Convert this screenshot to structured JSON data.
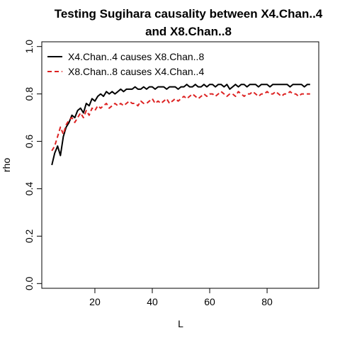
{
  "chart_data": {
    "type": "line",
    "title_lines": [
      "Testing Sugihara causality between  X4.Chan..4",
      "and X8.Chan..8"
    ],
    "xlabel": "L",
    "ylabel": "rho",
    "xlim": [
      1.5,
      98
    ],
    "ylim": [
      -0.02,
      1.02
    ],
    "xticks": [
      20,
      40,
      60,
      80
    ],
    "yticks": [
      0.0,
      0.2,
      0.4,
      0.6,
      0.8,
      1.0
    ],
    "xtick_labels": [
      "20",
      "40",
      "60",
      "80"
    ],
    "ytick_labels": [
      "0.0",
      "0.2",
      "0.4",
      "0.6",
      "0.8",
      "1.0"
    ],
    "grid": false,
    "legend_position": "top-left",
    "legend": [
      {
        "label": "X4.Chan..4 causes X8.Chan..8",
        "color": "#000000",
        "style": "solid"
      },
      {
        "label": "X8.Chan..8 causes X4.Chan..4",
        "color": "#dd2222",
        "style": "dashed"
      }
    ],
    "x": [
      5,
      6,
      7,
      8,
      9,
      10,
      11,
      12,
      13,
      14,
      15,
      16,
      17,
      18,
      19,
      20,
      21,
      22,
      23,
      24,
      25,
      26,
      27,
      28,
      29,
      30,
      31,
      32,
      33,
      34,
      35,
      36,
      37,
      38,
      39,
      40,
      41,
      42,
      43,
      44,
      45,
      46,
      47,
      48,
      49,
      50,
      51,
      52,
      53,
      54,
      55,
      56,
      57,
      58,
      59,
      60,
      61,
      62,
      63,
      64,
      65,
      66,
      67,
      68,
      69,
      70,
      71,
      72,
      73,
      74,
      75,
      76,
      77,
      78,
      79,
      80,
      81,
      82,
      83,
      84,
      85,
      86,
      87,
      88,
      89,
      90,
      91,
      92,
      93,
      94,
      95
    ],
    "series": [
      {
        "color": "#000000",
        "style": "solid",
        "values": [
          0.5,
          0.55,
          0.58,
          0.54,
          0.62,
          0.66,
          0.68,
          0.71,
          0.7,
          0.73,
          0.74,
          0.72,
          0.76,
          0.75,
          0.78,
          0.77,
          0.79,
          0.8,
          0.79,
          0.81,
          0.8,
          0.81,
          0.8,
          0.81,
          0.82,
          0.81,
          0.82,
          0.82,
          0.82,
          0.83,
          0.82,
          0.82,
          0.83,
          0.82,
          0.83,
          0.83,
          0.82,
          0.83,
          0.83,
          0.83,
          0.82,
          0.83,
          0.83,
          0.83,
          0.82,
          0.83,
          0.83,
          0.84,
          0.83,
          0.83,
          0.84,
          0.83,
          0.83,
          0.84,
          0.83,
          0.84,
          0.84,
          0.83,
          0.84,
          0.84,
          0.83,
          0.84,
          0.82,
          0.83,
          0.84,
          0.83,
          0.84,
          0.84,
          0.83,
          0.84,
          0.84,
          0.84,
          0.83,
          0.84,
          0.84,
          0.84,
          0.83,
          0.84,
          0.84,
          0.84,
          0.84,
          0.84,
          0.84,
          0.83,
          0.84,
          0.84,
          0.84,
          0.84,
          0.83,
          0.84,
          0.84
        ]
      },
      {
        "color": "#dd2222",
        "style": "dashed",
        "values": [
          0.56,
          0.58,
          0.62,
          0.66,
          0.63,
          0.67,
          0.69,
          0.7,
          0.68,
          0.7,
          0.72,
          0.7,
          0.73,
          0.71,
          0.74,
          0.73,
          0.75,
          0.74,
          0.75,
          0.76,
          0.74,
          0.75,
          0.76,
          0.75,
          0.76,
          0.75,
          0.76,
          0.77,
          0.76,
          0.76,
          0.75,
          0.77,
          0.76,
          0.76,
          0.77,
          0.78,
          0.76,
          0.77,
          0.76,
          0.77,
          0.78,
          0.76,
          0.77,
          0.78,
          0.77,
          0.78,
          0.79,
          0.78,
          0.79,
          0.8,
          0.79,
          0.78,
          0.79,
          0.8,
          0.79,
          0.8,
          0.8,
          0.79,
          0.8,
          0.81,
          0.8,
          0.79,
          0.8,
          0.8,
          0.79,
          0.81,
          0.8,
          0.79,
          0.8,
          0.8,
          0.81,
          0.8,
          0.79,
          0.8,
          0.8,
          0.81,
          0.8,
          0.8,
          0.81,
          0.8,
          0.79,
          0.8,
          0.8,
          0.81,
          0.8,
          0.8,
          0.79,
          0.8,
          0.8,
          0.8,
          0.8
        ]
      }
    ]
  }
}
